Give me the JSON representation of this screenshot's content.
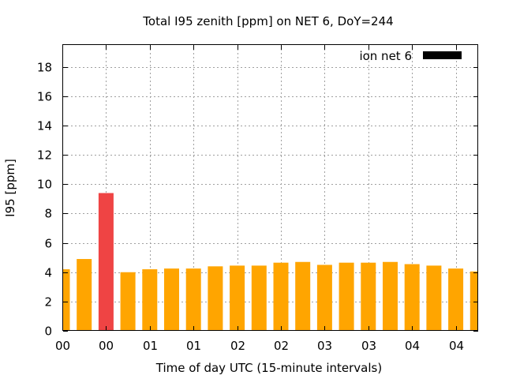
{
  "chart_data": {
    "type": "bar",
    "title": "Total I95 zenith [ppm] on NET 6, DoY=244",
    "xlabel": "Time of day UTC (15-minute intervals)",
    "ylabel": "I95 [ppm]",
    "ylim": [
      0,
      19.5
    ],
    "yticks": [
      0,
      2,
      4,
      6,
      8,
      10,
      12,
      14,
      16,
      18
    ],
    "xtick_labels": [
      "00",
      "00",
      "01",
      "01",
      "02",
      "02",
      "03",
      "03",
      "04",
      "04"
    ],
    "grid": true,
    "legend": {
      "label": "ion net 6",
      "position": "top-right",
      "color": "#000000"
    },
    "bar_color": "#ffa500",
    "highlight_color": "#ef4444",
    "categories": [
      "00:00",
      "00:15",
      "00:30",
      "00:45",
      "01:00",
      "01:15",
      "01:30",
      "01:45",
      "02:00",
      "02:15",
      "02:30",
      "02:45",
      "03:00",
      "03:15",
      "03:30",
      "03:45",
      "04:00",
      "04:15",
      "04:30",
      "04:45"
    ],
    "values": [
      4.2,
      4.9,
      9.4,
      4.0,
      4.2,
      4.25,
      4.25,
      4.4,
      4.45,
      4.45,
      4.65,
      4.7,
      4.5,
      4.65,
      4.65,
      4.7,
      4.55,
      4.45,
      4.25,
      4.05
    ],
    "highlight_index": 2
  }
}
